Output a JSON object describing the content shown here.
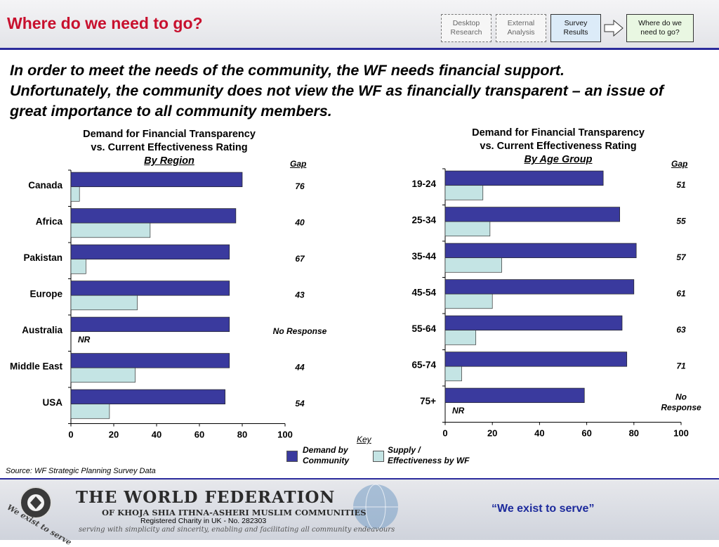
{
  "header": {
    "title": "Where do we need to go?",
    "steps": [
      {
        "label_line1": "Desktop",
        "label_line2": "Research"
      },
      {
        "label_line1": "External",
        "label_line2": "Analysis"
      },
      {
        "label_line1": "Survey",
        "label_line2": "Results"
      },
      {
        "label_line1": "Where do we",
        "label_line2": "need to go?"
      }
    ]
  },
  "intro": "In order to meet the needs of the community, the WF needs financial support. Unfortunately, the community does not view the WF as financially transparent – an issue of great importance to all community members.",
  "colors": {
    "demand": "#3a3a9e",
    "supply": "#c4e4e4",
    "title_red": "#c8102e",
    "rule_blue": "#2c2c9c"
  },
  "chart_data": [
    {
      "type": "bar",
      "orientation": "horizontal",
      "title_line1": "Demand for Financial Transparency",
      "title_line2": "vs. Current Effectiveness Rating",
      "subtitle": "By Region",
      "gap_header": "Gap",
      "categories": [
        "Canada",
        "Africa",
        "Pakistan",
        "Europe",
        "Australia",
        "Middle East",
        "USA"
      ],
      "series": [
        {
          "name": "Demand by Community",
          "values": [
            80,
            77,
            74,
            74,
            74,
            74,
            72
          ]
        },
        {
          "name": "Supply / Effectiveness by WF",
          "values": [
            4,
            37,
            7,
            31,
            null,
            30,
            18
          ]
        }
      ],
      "nr_label": "NR",
      "gaps": [
        "76",
        "40",
        "67",
        "43",
        "No Response",
        "44",
        "54"
      ],
      "xlim": [
        0,
        100
      ],
      "xticks": [
        "0",
        "20",
        "40",
        "60",
        "80",
        "100"
      ]
    },
    {
      "type": "bar",
      "orientation": "horizontal",
      "title_line1": "Demand for Financial Transparency",
      "title_line2": "vs. Current Effectiveness Rating",
      "subtitle": "By Age Group",
      "gap_header": "Gap",
      "categories": [
        "19-24",
        "25-34",
        "35-44",
        "45-54",
        "55-64",
        "65-74",
        "75+"
      ],
      "series": [
        {
          "name": "Demand by Community",
          "values": [
            67,
            74,
            81,
            80,
            75,
            77,
            59
          ]
        },
        {
          "name": "Supply / Effectiveness by WF",
          "values": [
            16,
            19,
            24,
            20,
            13,
            7,
            null
          ]
        }
      ],
      "nr_label": "NR",
      "gaps": [
        "51",
        "55",
        "57",
        "61",
        "63",
        "71",
        "No Response"
      ],
      "xlim": [
        0,
        100
      ],
      "xticks": [
        "0",
        "20",
        "40",
        "60",
        "80",
        "100"
      ]
    }
  ],
  "key": {
    "title": "Key",
    "demand_line1": "Demand by",
    "demand_line2": "Community",
    "supply_line1": "Supply /",
    "supply_line2": "Effectiveness by WF"
  },
  "source": "Source: WF Strategic Planning Survey Data",
  "footer": {
    "org_name": "THE WORLD FEDERATION",
    "org_sub": "OF KHOJA SHIA ITHNA-ASHERI MUSLIM COMMUNITIES",
    "charity": "Registered Charity in UK - No. 282303",
    "tagline": "serving with simplicity and sincerity, enabling and facilitating all community endeavours",
    "motto": "“We exist to serve”",
    "seal_text": "We exist to serve"
  }
}
